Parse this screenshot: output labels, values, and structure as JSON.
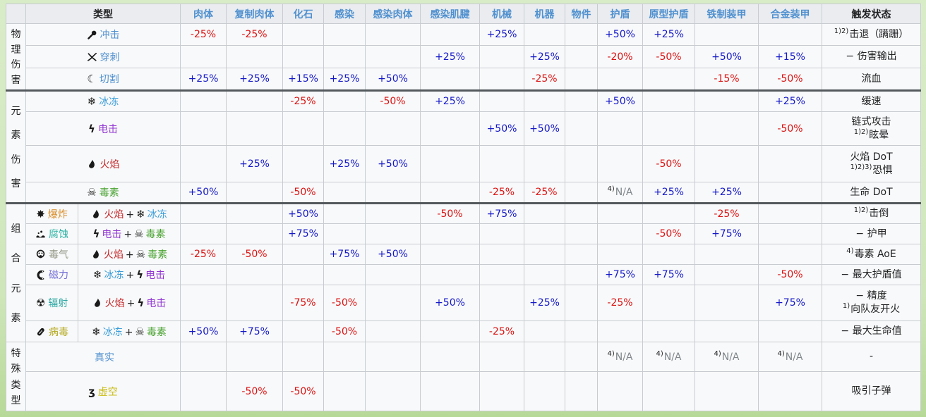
{
  "table": {
    "columns": [
      {
        "key": "type",
        "label": "类型",
        "link": false
      },
      {
        "key": "flesh",
        "label": "肉体",
        "link": true
      },
      {
        "key": "cloned_flesh",
        "label": "复制肉体",
        "link": true
      },
      {
        "key": "fossilized",
        "label": "化石",
        "link": true
      },
      {
        "key": "infested",
        "label": "感染",
        "link": true
      },
      {
        "key": "infested_flesh",
        "label": "感染肉体",
        "link": true
      },
      {
        "key": "infested_sinew",
        "label": "感染肌腱",
        "link": true
      },
      {
        "key": "machinery",
        "label": "机械",
        "link": true
      },
      {
        "key": "robotic",
        "label": "机器",
        "link": true
      },
      {
        "key": "object",
        "label": "物件",
        "link": true
      },
      {
        "key": "shield",
        "label": "护盾",
        "link": true
      },
      {
        "key": "proto_shield",
        "label": "原型护盾",
        "link": true
      },
      {
        "key": "ferrite_armor",
        "label": "铁制装甲",
        "link": true
      },
      {
        "key": "alloy_armor",
        "label": "合金装甲",
        "link": true
      },
      {
        "key": "status",
        "label": "触发状态",
        "link": false
      }
    ],
    "element_palette": {
      "heat": {
        "label": "火焰",
        "color": "#c4282a"
      },
      "cold": {
        "label": "冰冻",
        "color": "#3b9dd9"
      },
      "electricity": {
        "label": "电击",
        "color": "#9135d2"
      },
      "toxin": {
        "label": "毒素",
        "color": "#46a12e"
      }
    },
    "groups": [
      {
        "key": "physical",
        "label": "物理伤害",
        "rows": [
          {
            "key": "impact",
            "label": "冲击",
            "icon": "impact",
            "color": "#4f90cf",
            "values": {
              "flesh": "-25%",
              "cloned_flesh": "-25%",
              "machinery": "+25%",
              "shield": "+50%",
              "proto_shield": "+25%"
            },
            "status": [
              "1)2)击退（蹒跚）"
            ]
          },
          {
            "key": "puncture",
            "label": "穿刺",
            "icon": "puncture",
            "color": "#4f90cf",
            "values": {
              "infested_sinew": "+25%",
              "robotic": "+25%",
              "shield": "-20%",
              "proto_shield": "-50%",
              "ferrite_armor": "+50%",
              "alloy_armor": "+15%"
            },
            "status": [
              "− 伤害输出"
            ]
          },
          {
            "key": "slash",
            "label": "切割",
            "icon": "slash",
            "color": "#4f90cf",
            "values": {
              "flesh": "+25%",
              "cloned_flesh": "+25%",
              "fossilized": "+15%",
              "infested": "+25%",
              "infested_flesh": "+50%",
              "robotic": "-25%",
              "ferrite_armor": "-15%",
              "alloy_armor": "-50%"
            },
            "status": [
              "流血"
            ]
          }
        ]
      },
      {
        "key": "elemental",
        "label": "元素伤害",
        "rows": [
          {
            "key": "cold",
            "label": "冰冻",
            "icon": "cold",
            "color": "#3b9dd9",
            "values": {
              "fossilized": "-25%",
              "infested_flesh": "-50%",
              "infested_sinew": "+25%",
              "shield": "+50%",
              "alloy_armor": "+25%"
            },
            "status": [
              "缓速"
            ]
          },
          {
            "key": "electricity",
            "label": "电击",
            "icon": "electricity",
            "color": "#9135d2",
            "values": {
              "machinery": "+50%",
              "robotic": "+50%",
              "alloy_armor": "-50%"
            },
            "status": [
              "链式攻击",
              "1)2)眩晕"
            ]
          },
          {
            "key": "heat",
            "label": "火焰",
            "icon": "heat",
            "color": "#c4282a",
            "values": {
              "cloned_flesh": "+25%",
              "infested": "+25%",
              "infested_flesh": "+50%",
              "proto_shield": "-50%"
            },
            "status": [
              "火焰 DoT",
              "1)2)3)恐惧"
            ]
          },
          {
            "key": "toxin",
            "label": "毒素",
            "icon": "toxin",
            "color": "#46a12e",
            "values": {
              "flesh": "+50%",
              "fossilized": "-50%",
              "machinery": "-25%",
              "robotic": "-25%",
              "shield": "4)N/A",
              "proto_shield": "+25%",
              "ferrite_armor": "+25%"
            },
            "status": [
              "生命 DoT"
            ]
          }
        ]
      },
      {
        "key": "combined",
        "label": "组合元素",
        "rows": [
          {
            "key": "blast",
            "label": "爆炸",
            "icon": "blast",
            "color": "#d98b26",
            "combo": [
              "heat",
              "cold"
            ],
            "values": {
              "fossilized": "+50%",
              "infested_sinew": "-50%",
              "machinery": "+75%",
              "ferrite_armor": "-25%"
            },
            "status": [
              "1)2)击倒"
            ]
          },
          {
            "key": "corrosive",
            "label": "腐蚀",
            "icon": "corrosive",
            "color": "#2fb3a4",
            "combo": [
              "electricity",
              "toxin"
            ],
            "values": {
              "fossilized": "+75%",
              "proto_shield": "-50%",
              "ferrite_armor": "+75%"
            },
            "status": [
              "− 护甲"
            ]
          },
          {
            "key": "gas",
            "label": "毒气",
            "icon": "gas",
            "color": "#8e9582",
            "combo": [
              "heat",
              "toxin"
            ],
            "values": {
              "flesh": "-25%",
              "cloned_flesh": "-50%",
              "infested": "+75%",
              "infested_flesh": "+50%"
            },
            "status": [
              "4)毒素 AoE"
            ]
          },
          {
            "key": "magnetic",
            "label": "磁力",
            "icon": "magnetic",
            "color": "#7570d6",
            "combo": [
              "cold",
              "electricity"
            ],
            "values": {
              "shield": "+75%",
              "proto_shield": "+75%",
              "alloy_armor": "-50%"
            },
            "status": [
              "− 最大护盾值"
            ]
          },
          {
            "key": "radiation",
            "label": "辐射",
            "icon": "radiation",
            "color": "#2da8a4",
            "combo": [
              "heat",
              "electricity"
            ],
            "values": {
              "fossilized": "-75%",
              "infested": "-50%",
              "infested_sinew": "+50%",
              "robotic": "+25%",
              "shield": "-25%",
              "alloy_armor": "+75%"
            },
            "status": [
              "− 精度",
              "1)向队友开火"
            ]
          },
          {
            "key": "viral",
            "label": "病毒",
            "icon": "viral",
            "color": "#b3a81c",
            "combo": [
              "cold",
              "toxin"
            ],
            "values": {
              "flesh": "+50%",
              "cloned_flesh": "+75%",
              "infested": "-50%",
              "machinery": "-25%"
            },
            "status": [
              "− 最大生命值"
            ]
          }
        ]
      },
      {
        "key": "special",
        "label": "特殊类型",
        "rows": [
          {
            "key": "true",
            "label": "真实",
            "icon": null,
            "color": "#4f90cf",
            "values": {
              "shield": "4)N/A",
              "proto_shield": "4)N/A",
              "ferrite_armor": "4)N/A",
              "alloy_armor": "4)N/A"
            },
            "status": [
              "-"
            ]
          },
          {
            "key": "void",
            "label": "虚空",
            "icon": "void",
            "color": "#c9bc16",
            "values": {
              "cloned_flesh": "-50%",
              "fossilized": "-50%"
            },
            "status": [
              "吸引子弹"
            ]
          }
        ]
      }
    ],
    "value_colors": {
      "positive": "#1418c8",
      "negative": "#dc1212",
      "na": "#80868b"
    }
  }
}
